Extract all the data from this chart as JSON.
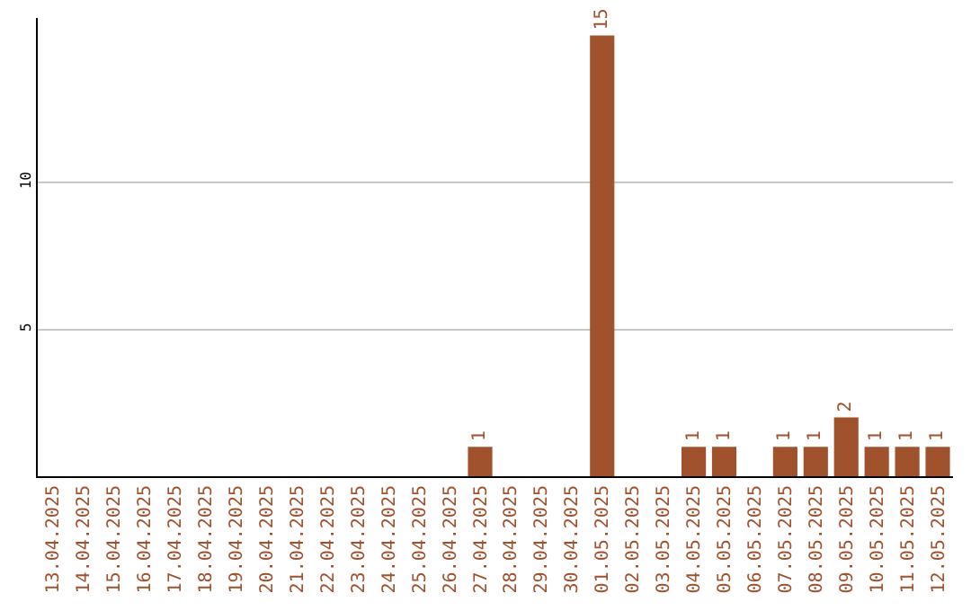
{
  "chart_data": {
    "type": "bar",
    "categories": [
      "13.04.2025",
      "14.04.2025",
      "15.04.2025",
      "16.04.2025",
      "17.04.2025",
      "18.04.2025",
      "19.04.2025",
      "20.04.2025",
      "21.04.2025",
      "22.04.2025",
      "23.04.2025",
      "24.04.2025",
      "25.04.2025",
      "26.04.2025",
      "27.04.2025",
      "28.04.2025",
      "29.04.2025",
      "30.04.2025",
      "01.05.2025",
      "02.05.2025",
      "03.05.2025",
      "04.05.2025",
      "05.05.2025",
      "06.05.2025",
      "07.05.2025",
      "08.05.2025",
      "09.05.2025",
      "10.05.2025",
      "11.05.2025",
      "12.05.2025"
    ],
    "values": [
      0,
      0,
      0,
      0,
      0,
      0,
      0,
      0,
      0,
      0,
      0,
      0,
      0,
      0,
      1,
      0,
      0,
      0,
      15,
      0,
      0,
      1,
      1,
      0,
      1,
      1,
      2,
      1,
      1,
      1
    ],
    "value_labels": [
      null,
      null,
      null,
      null,
      null,
      null,
      null,
      null,
      null,
      null,
      null,
      null,
      null,
      null,
      "1",
      null,
      null,
      null,
      "15",
      null,
      null,
      "1",
      "1",
      null,
      "1",
      "1",
      "2",
      "1",
      "1",
      "1"
    ],
    "color": "#a0522d",
    "ylim": [
      0,
      15.6
    ],
    "yticks": [
      5,
      10
    ],
    "grid": "y",
    "legend": false
  }
}
